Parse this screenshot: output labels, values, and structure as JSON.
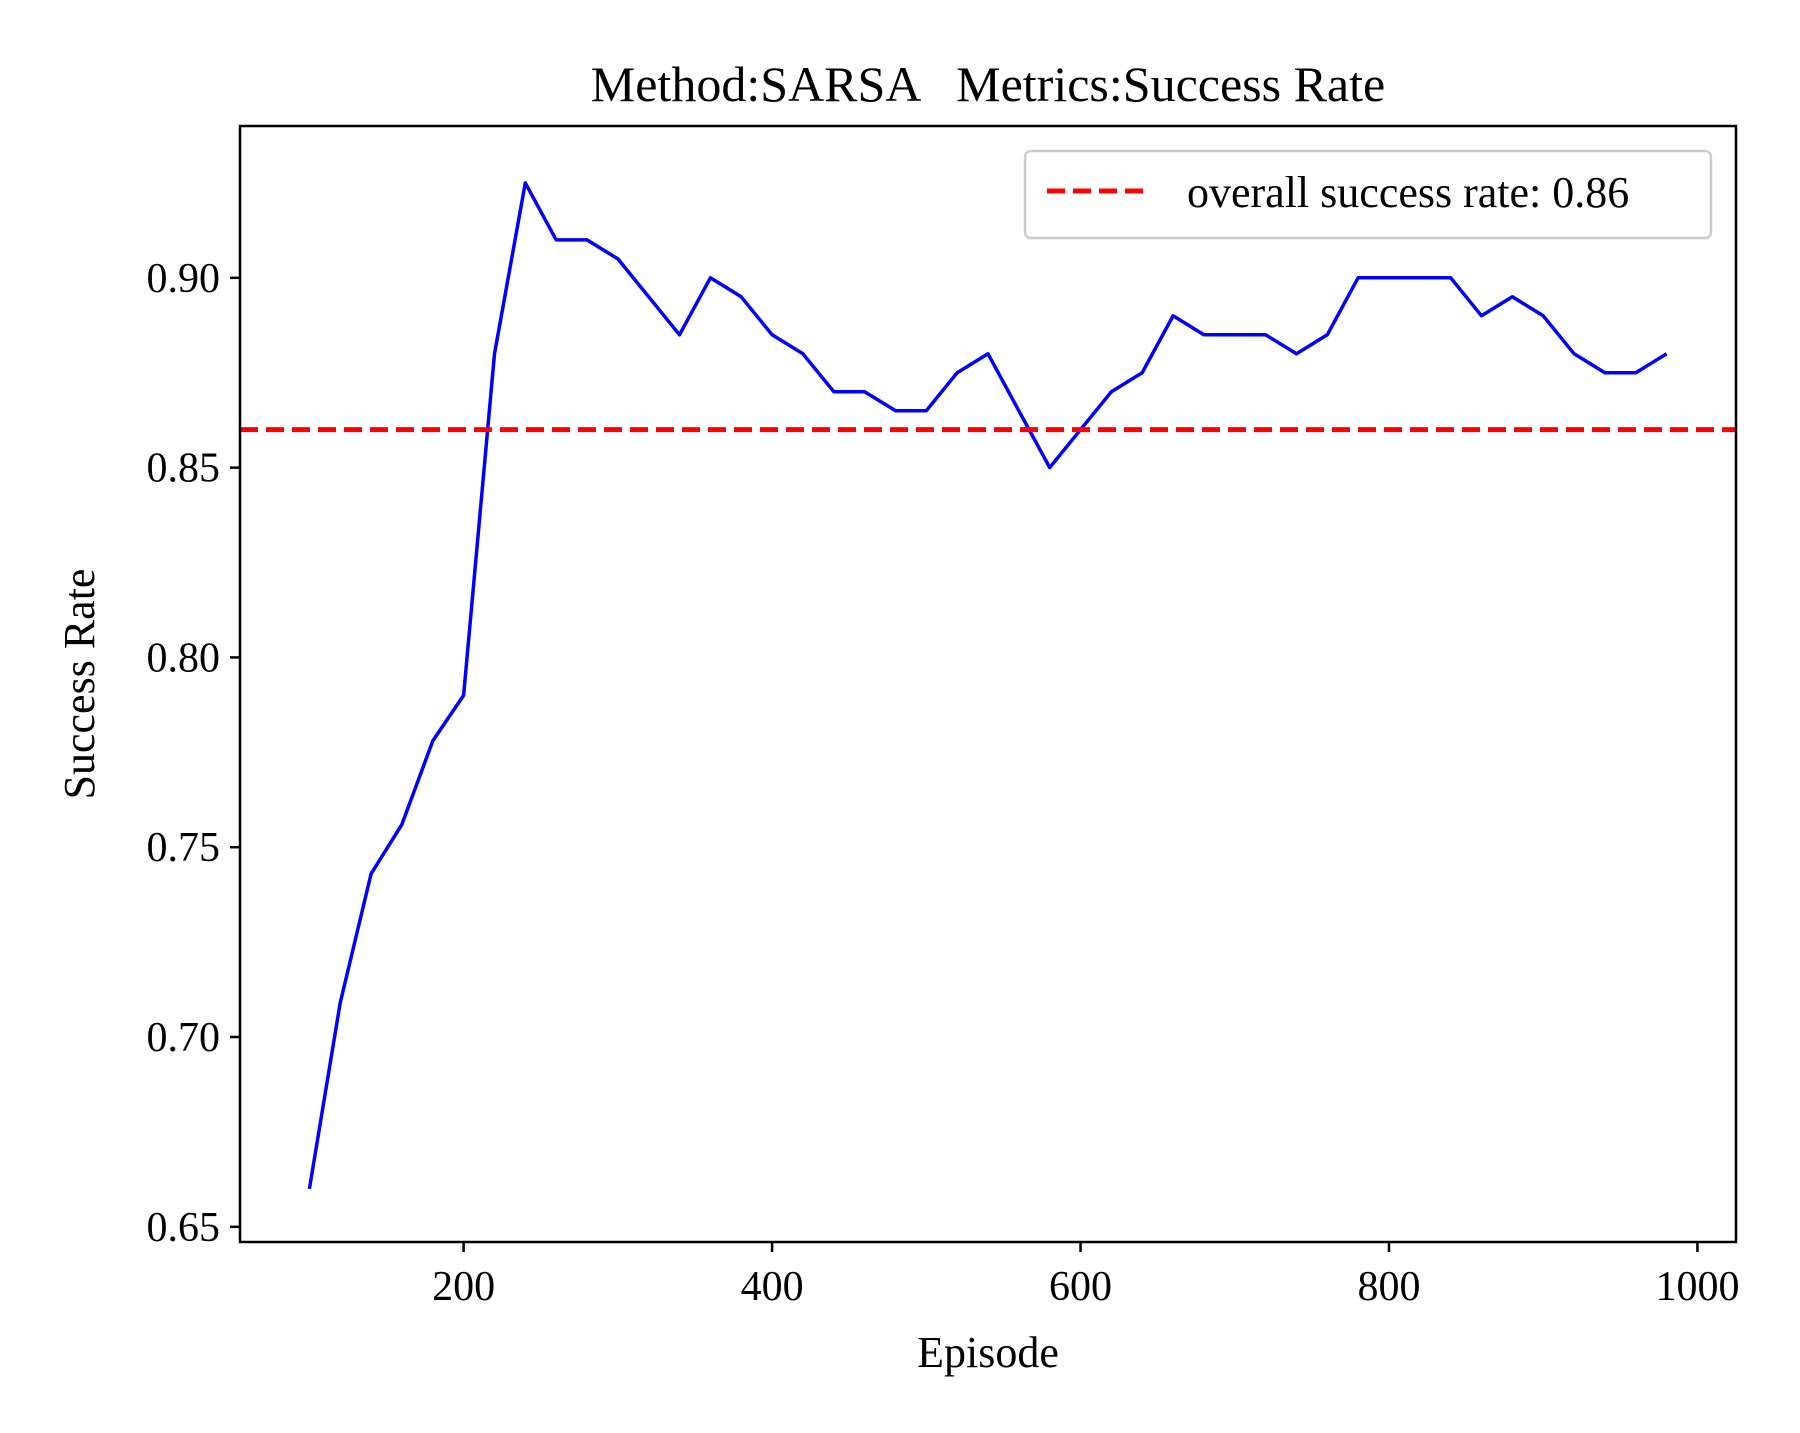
{
  "chart_data": {
    "type": "line",
    "title": "Method:SARSA   Metrics:Success Rate",
    "xlabel": "Episode",
    "ylabel": "Success Rate",
    "xlim": [
      55,
      1025
    ],
    "ylim": [
      0.646,
      0.94
    ],
    "xticks": [
      200,
      400,
      600,
      800,
      1000
    ],
    "yticks": [
      0.65,
      0.7,
      0.75,
      0.8,
      0.85,
      0.9
    ],
    "xtick_labels": [
      "200",
      "400",
      "600",
      "800",
      "1000"
    ],
    "ytick_labels": [
      "0.65",
      "0.70",
      "0.75",
      "0.80",
      "0.85",
      "0.90"
    ],
    "grid": false,
    "legend_position": "top-right",
    "series": [
      {
        "color": "#0000ff",
        "style": "solid",
        "x": [
          100,
          120,
          140,
          160,
          180,
          200,
          220,
          240,
          260,
          280,
          300,
          320,
          340,
          360,
          380,
          400,
          420,
          440,
          460,
          480,
          500,
          520,
          540,
          560,
          580,
          600,
          620,
          640,
          660,
          680,
          700,
          720,
          740,
          760,
          780,
          800,
          820,
          840,
          860,
          880,
          900,
          920,
          940,
          960,
          980
        ],
        "values": [
          0.66,
          0.709,
          0.743,
          0.756,
          0.778,
          0.79,
          0.88,
          0.925,
          0.91,
          0.91,
          0.905,
          0.895,
          0.885,
          0.9,
          0.895,
          0.885,
          0.88,
          0.87,
          0.87,
          0.865,
          0.865,
          0.875,
          0.88,
          0.865,
          0.85,
          0.86,
          0.87,
          0.875,
          0.89,
          0.885,
          0.885,
          0.885,
          0.88,
          0.885,
          0.9,
          0.9,
          0.9,
          0.9,
          0.89,
          0.895,
          0.89,
          0.88,
          0.875,
          0.875,
          0.88
        ]
      }
    ],
    "reference_lines": [
      {
        "name": "overall success rate: 0.86",
        "value": 0.86,
        "color": "#ff0000",
        "style": "dashed"
      }
    ]
  }
}
